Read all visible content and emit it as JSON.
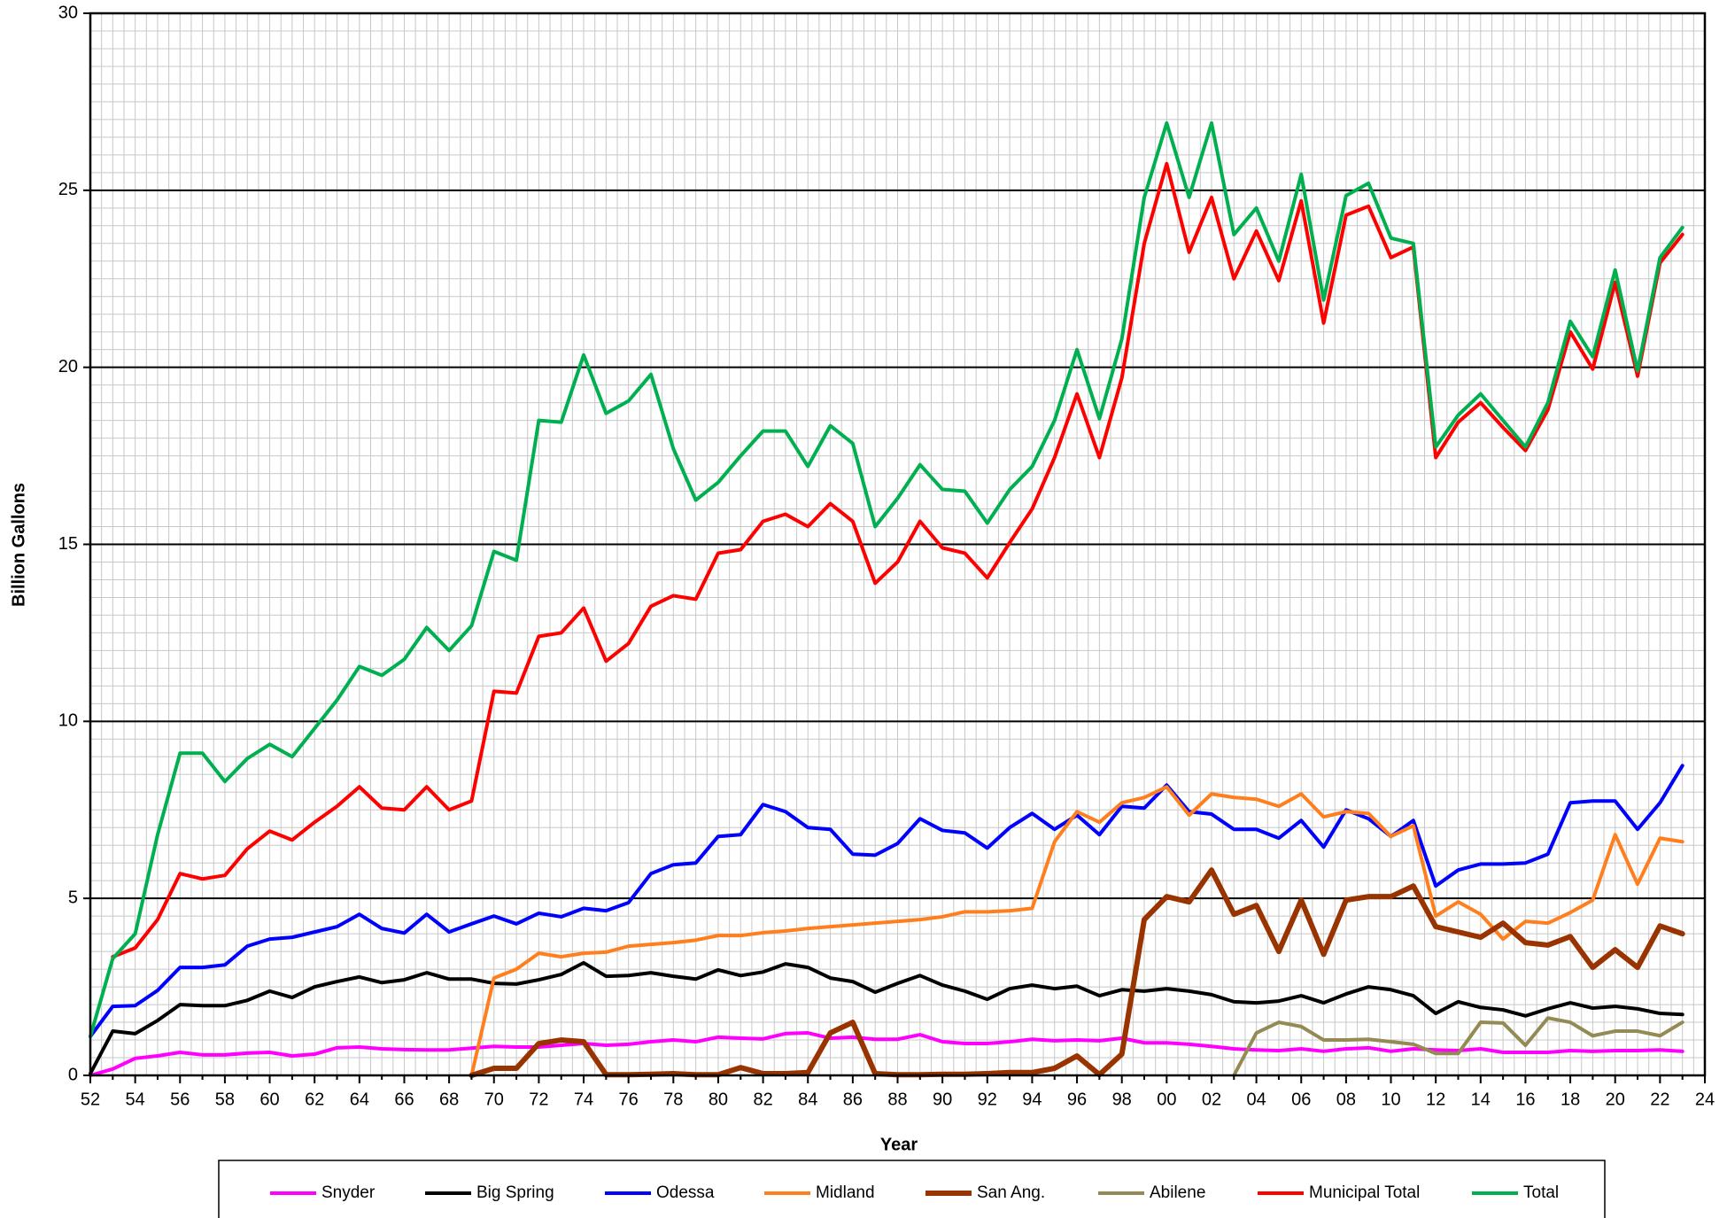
{
  "chart_data": {
    "type": "line",
    "y_label": "Billion Gallons",
    "x_label": "Year",
    "categories": [
      "52",
      null,
      "54",
      null,
      "56",
      null,
      "58",
      null,
      "60",
      null,
      "62",
      null,
      "64",
      null,
      "66",
      null,
      "68",
      null,
      "70",
      null,
      "72",
      null,
      "74",
      null,
      "76",
      null,
      "78",
      null,
      "80",
      null,
      "82",
      null,
      "84",
      null,
      "86",
      null,
      "88",
      null,
      "90",
      null,
      "92",
      null,
      "94",
      null,
      "96",
      null,
      "98",
      null,
      "00",
      null,
      "02",
      null,
      "04",
      null,
      "06",
      null,
      "08",
      null,
      "10",
      null,
      "12",
      null,
      "14",
      null,
      "16",
      null,
      "18",
      null,
      "20",
      null,
      "22",
      null,
      "24"
    ],
    "ylim": [
      0,
      30
    ],
    "yticks": [
      0,
      5,
      10,
      15,
      20,
      25,
      30
    ],
    "grid": true,
    "legend": "bottom",
    "series": [
      {
        "name": "Snyder",
        "color": "#ff00ff",
        "values": [
          0.0,
          0.18,
          0.48,
          0.55,
          0.65,
          0.58,
          0.58,
          0.63,
          0.65,
          0.55,
          0.6,
          0.78,
          0.8,
          0.75,
          0.73,
          0.72,
          0.72,
          0.77,
          0.82,
          0.8,
          0.8,
          0.85,
          0.9,
          0.85,
          0.88,
          0.95,
          1.0,
          0.95,
          1.08,
          1.05,
          1.03,
          1.18,
          1.2,
          1.05,
          1.08,
          1.02,
          1.02,
          1.15,
          0.95,
          0.9,
          0.9,
          0.95,
          1.02,
          0.98,
          1.0,
          0.98,
          1.05,
          0.92,
          0.92,
          0.88,
          0.82,
          0.75,
          0.72,
          0.7,
          0.75,
          0.68,
          0.75,
          0.78,
          0.68,
          0.75,
          0.72,
          0.7,
          0.75,
          0.65,
          0.65,
          0.65,
          0.7,
          0.68,
          0.7,
          0.7,
          0.72,
          0.68,
          null
        ]
      },
      {
        "name": "Big Spring",
        "color": "#000000",
        "values": [
          0.05,
          1.25,
          1.18,
          1.55,
          2.0,
          1.97,
          1.97,
          2.12,
          2.38,
          2.2,
          2.5,
          2.65,
          2.78,
          2.62,
          2.7,
          2.9,
          2.72,
          2.72,
          2.6,
          2.58,
          2.7,
          2.85,
          3.18,
          2.8,
          2.82,
          2.9,
          2.8,
          2.72,
          2.98,
          2.82,
          2.92,
          3.15,
          3.05,
          2.75,
          2.65,
          2.35,
          2.6,
          2.82,
          2.55,
          2.38,
          2.15,
          2.45,
          2.55,
          2.45,
          2.52,
          2.25,
          2.42,
          2.38,
          2.45,
          2.38,
          2.28,
          2.08,
          2.05,
          2.1,
          2.25,
          2.05,
          2.3,
          2.5,
          2.42,
          2.25,
          1.75,
          2.08,
          1.92,
          1.85,
          1.68,
          1.88,
          2.05,
          1.9,
          1.95,
          1.88,
          1.75,
          1.72,
          null
        ]
      },
      {
        "name": "Odessa",
        "color": "#0000ff",
        "values": [
          1.1,
          1.95,
          1.97,
          2.4,
          3.05,
          3.05,
          3.12,
          3.65,
          3.85,
          3.9,
          4.05,
          4.2,
          4.55,
          4.15,
          4.02,
          4.55,
          4.05,
          4.28,
          4.5,
          4.28,
          4.58,
          4.48,
          4.72,
          4.65,
          4.88,
          5.7,
          5.95,
          6.0,
          6.75,
          6.8,
          7.65,
          7.45,
          7.0,
          6.95,
          6.25,
          6.22,
          6.55,
          7.25,
          6.92,
          6.85,
          6.42,
          7.0,
          7.4,
          6.95,
          7.35,
          6.8,
          7.6,
          7.55,
          8.2,
          7.45,
          7.38,
          6.95,
          6.95,
          6.7,
          7.2,
          6.45,
          7.5,
          7.25,
          6.75,
          7.2,
          5.35,
          5.8,
          5.97,
          5.97,
          6.0,
          6.25,
          7.7,
          7.75,
          7.75,
          6.95,
          7.7,
          8.75,
          null
        ]
      },
      {
        "name": "Midland",
        "color": "#ff7f1e",
        "values": [
          null,
          null,
          null,
          null,
          null,
          null,
          null,
          null,
          null,
          null,
          null,
          null,
          null,
          null,
          null,
          null,
          null,
          0.0,
          2.75,
          3.0,
          3.45,
          3.35,
          3.45,
          3.48,
          3.65,
          3.7,
          3.75,
          3.82,
          3.95,
          3.95,
          4.03,
          4.08,
          4.15,
          4.2,
          4.25,
          4.3,
          4.35,
          4.4,
          4.48,
          4.62,
          4.62,
          4.65,
          4.72,
          6.6,
          7.45,
          7.15,
          7.7,
          7.85,
          8.15,
          7.35,
          7.95,
          7.85,
          7.8,
          7.6,
          7.95,
          7.3,
          7.45,
          7.4,
          6.75,
          7.05,
          4.5,
          4.9,
          4.55,
          3.85,
          4.35,
          4.3,
          4.6,
          4.95,
          6.8,
          5.4,
          6.7,
          6.6,
          null
        ]
      },
      {
        "name": "San Ang.",
        "color": "#993300",
        "values": [
          null,
          null,
          null,
          null,
          null,
          null,
          null,
          null,
          null,
          null,
          null,
          null,
          null,
          null,
          null,
          null,
          null,
          0.0,
          0.2,
          0.2,
          0.9,
          1.0,
          0.95,
          0.02,
          0.02,
          0.03,
          0.05,
          0.02,
          0.02,
          0.22,
          0.05,
          0.05,
          0.08,
          1.2,
          1.5,
          0.05,
          0.02,
          0.02,
          0.03,
          0.03,
          0.05,
          0.08,
          0.08,
          0.2,
          0.55,
          0.02,
          0.6,
          4.4,
          5.05,
          4.9,
          5.8,
          4.55,
          4.8,
          3.5,
          4.95,
          3.42,
          4.95,
          5.05,
          5.05,
          5.35,
          4.2,
          4.05,
          3.9,
          4.3,
          3.75,
          3.68,
          3.92,
          3.05,
          3.55,
          3.05,
          4.22,
          4.0,
          null
        ]
      },
      {
        "name": "Abilene",
        "color": "#948a54",
        "values": [
          null,
          null,
          null,
          null,
          null,
          null,
          null,
          null,
          null,
          null,
          null,
          null,
          null,
          null,
          null,
          null,
          null,
          null,
          null,
          null,
          null,
          null,
          null,
          null,
          null,
          null,
          null,
          null,
          null,
          null,
          null,
          null,
          null,
          null,
          null,
          null,
          null,
          null,
          null,
          null,
          null,
          null,
          null,
          null,
          null,
          null,
          null,
          null,
          null,
          null,
          null,
          0.0,
          1.2,
          1.5,
          1.38,
          1.0,
          1.0,
          1.02,
          0.95,
          0.88,
          0.62,
          0.62,
          1.5,
          1.48,
          0.85,
          1.62,
          1.5,
          1.12,
          1.25,
          1.25,
          1.12,
          1.5,
          null
        ]
      },
      {
        "name": "Municipal Total",
        "color": "#ff0000",
        "values": [
          null,
          3.35,
          3.6,
          4.4,
          5.7,
          5.55,
          5.65,
          6.4,
          6.9,
          6.65,
          7.15,
          7.6,
          8.15,
          7.55,
          7.5,
          8.15,
          7.5,
          7.75,
          10.85,
          10.8,
          12.4,
          12.5,
          13.2,
          11.7,
          12.2,
          13.25,
          13.55,
          13.45,
          14.75,
          14.85,
          15.65,
          15.85,
          15.5,
          16.15,
          15.65,
          13.9,
          14.5,
          15.65,
          14.9,
          14.75,
          14.05,
          15.05,
          16.0,
          17.45,
          19.25,
          17.45,
          19.7,
          23.5,
          25.75,
          23.25,
          24.8,
          22.5,
          23.85,
          22.45,
          24.7,
          21.25,
          24.3,
          24.55,
          23.1,
          23.4,
          17.45,
          18.45,
          19.0,
          18.3,
          17.65,
          18.8,
          21.0,
          19.95,
          22.4,
          19.75,
          22.95,
          23.75,
          null
        ]
      },
      {
        "name": "Total",
        "color": "#00b050",
        "values": [
          1.1,
          3.3,
          4.0,
          6.8,
          9.1,
          9.1,
          8.3,
          8.95,
          9.35,
          9.0,
          9.8,
          10.6,
          11.55,
          11.3,
          11.75,
          12.65,
          12.0,
          12.7,
          14.8,
          14.55,
          18.5,
          18.45,
          20.35,
          18.7,
          19.05,
          19.8,
          17.7,
          16.25,
          16.75,
          17.5,
          18.2,
          18.2,
          17.2,
          18.35,
          17.85,
          15.5,
          16.3,
          17.25,
          16.55,
          16.5,
          15.6,
          16.55,
          17.2,
          18.5,
          20.5,
          18.55,
          20.8,
          24.8,
          26.9,
          24.8,
          26.9,
          23.75,
          24.5,
          23.0,
          25.45,
          21.9,
          24.85,
          25.2,
          23.65,
          23.5,
          17.75,
          18.65,
          19.25,
          18.5,
          17.75,
          19.0,
          21.3,
          20.3,
          22.75,
          19.9,
          23.1,
          23.95,
          null
        ]
      }
    ]
  }
}
